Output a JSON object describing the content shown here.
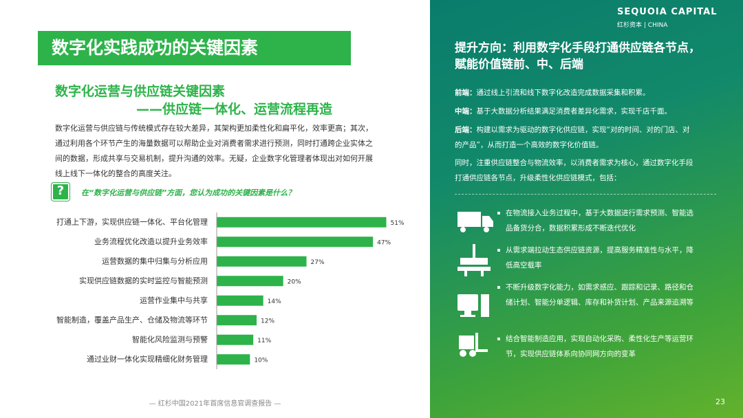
{
  "title": "数字化实践成功的关键因素",
  "section": {
    "heading": [
      "数字化运营与供应链关键因素",
      "——供应链一体化、运营流程再造"
    ],
    "body": "数字化运营与供应链与传统模式存在较大差异，其架构更加柔性化和扁平化，效率更高；其次，通过利用各个环节产生的海量数据可以帮助企业对消费者需求进行预测，同时打通跨企业实体之间的数据，形成共享与交易机制，提升沟通的效率。无疑，企业数字化管理者体现出对如何开展线上线下一体化的整合的高度关注。",
    "question_icon": "?",
    "question": "在“数字化运营与供应链”方面，您认为成功的关键因素是什么？"
  },
  "chart_data": {
    "type": "bar",
    "orientation": "horizontal",
    "color": "#2db34a",
    "categories": [
      "打通上下游，实现供应链一体化、平台化管理",
      "业务流程优化改造以提升业务效率",
      "运营数据的集中归集与分析应用",
      "实现供应链数据的实时监控与智能预测",
      "运营作业集中与共享",
      "智能制造，覆盖产品生产、仓储及物流等环节",
      "智能化风险监测与预警",
      "通过业财一体化实现精细化财务管理"
    ],
    "values": [
      51,
      47,
      27,
      20,
      14,
      12,
      11,
      10
    ],
    "value_labels": [
      "51%",
      "47%",
      "27%",
      "20%",
      "14%",
      "12%",
      "11%",
      "10%"
    ],
    "xlim": [
      0,
      60
    ]
  },
  "logo": {
    "name": "SEQUOIA CAPITAL",
    "cn": "红杉资本",
    "region": "CHINA"
  },
  "right": {
    "heading": "提升方向：利用数字化手段打通供应链各节点，赋能价值链前、中、后端",
    "items": [
      {
        "label": "前端：",
        "text": "通过线上引流和线下数字化改造完成数据采集和积累。"
      },
      {
        "label": "中端：",
        "text": "基于大数据分析结果满足消费者差异化需求，实现千店千面。"
      },
      {
        "label": "后端：",
        "text": "构建以需求为驱动的数字化供应链，实现“对的时间、对的门店、对的产品”，从而打造一个高效的数字化价值链。"
      }
    ],
    "paragraph": "同时，注重供应链整合与物流效率，以消费者需求为核心，通过数字化手段打通供应链各节点，升级柔性化供应链模式，包括：",
    "bullets": [
      "在物流接入业务过程中，基于大数据进行需求预测、智能选品备货分合，数据积累形成不断迭代优化",
      "从需求端拉动生态供应链资源，提高服务精准性与水平，降低高空载率",
      "不断升级数字化能力，如需求感应、跟踪和记录、路径和仓储计划、智能分单逻辑、库存和补货计划、产品来源追溯等",
      "结合智能制造应用，实现自动化采购、柔性化生产等运营环节，实现供应链体系向协同网方向的变革"
    ]
  },
  "footer": "— 红杉中国2021年首席信息官调查报告 —",
  "page_number": "23"
}
